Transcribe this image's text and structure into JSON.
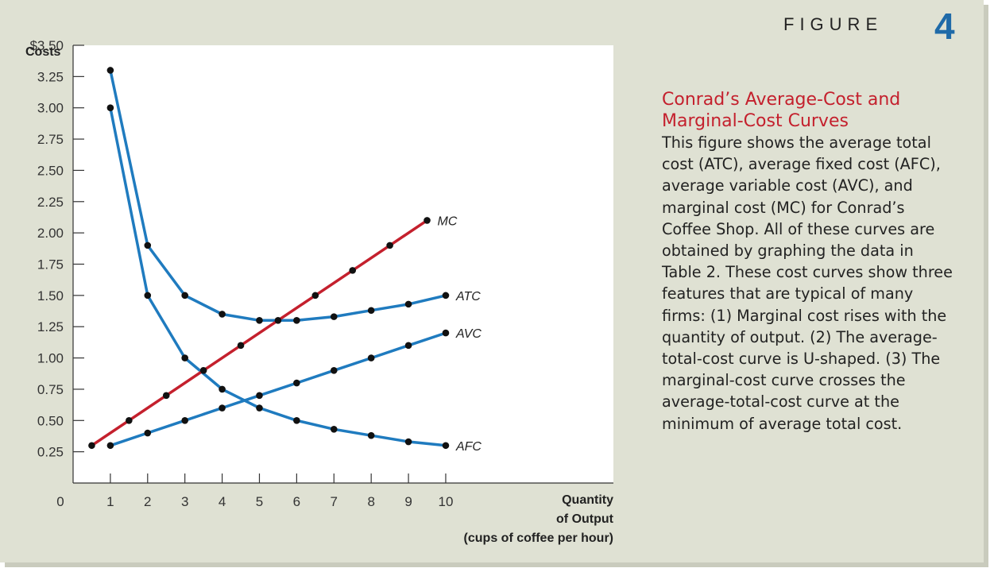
{
  "figure": {
    "label": "FIGURE",
    "number": "4"
  },
  "caption": {
    "title": "Conrad’s Average-Cost and Marginal-Cost Curves",
    "body": "This figure shows the average total cost (ATC), average fixed cost (AFC), average variable cost (AVC), and marginal cost (MC) for Conrad’s Coffee Shop. All of these curves are obtained by graphing the data in Table 2. These cost curves show three features that are typical of many firms: (1) Marginal cost rises with the quantity of output. (2) The average-total-cost curve is U-shaped. (3) The marginal-cost curve crosses the average-total-cost curve at the minimum of average total cost."
  },
  "colors": {
    "line": "#1f7bbf",
    "mc_line": "#c4202d",
    "point": "#111111",
    "accent": "#1f6aa8"
  },
  "chart_data": {
    "type": "line",
    "ylabel": "Costs",
    "xlabel_lines": [
      "Quantity",
      "of Output",
      "(cups of coffee per hour)"
    ],
    "xlim": [
      0,
      14.5
    ],
    "ylim": [
      0,
      3.5
    ],
    "x_ticks": [
      1,
      2,
      3,
      4,
      5,
      6,
      7,
      8,
      9,
      10
    ],
    "x_tick_labels": [
      "1",
      "2",
      "3",
      "4",
      "5",
      "6",
      "7",
      "8",
      "9",
      "10"
    ],
    "origin_label": "0",
    "y_ticks": [
      0.25,
      0.5,
      0.75,
      1.0,
      1.25,
      1.5,
      1.75,
      2.0,
      2.25,
      2.5,
      2.75,
      3.0,
      3.25,
      3.5
    ],
    "y_tick_labels": [
      "0.25",
      "0.50",
      "0.75",
      "1.00",
      "1.25",
      "1.50",
      "1.75",
      "2.00",
      "2.25",
      "2.50",
      "2.75",
      "3.00",
      "3.25",
      "$3.50"
    ],
    "grid": false,
    "series": [
      {
        "name": "ATC",
        "color": "#1f7bbf",
        "x": [
          1,
          2,
          3,
          4,
          5,
          6,
          7,
          8,
          9,
          10
        ],
        "y": [
          3.3,
          1.9,
          1.5,
          1.35,
          1.3,
          1.3,
          1.33,
          1.38,
          1.43,
          1.5
        ]
      },
      {
        "name": "AVC",
        "color": "#1f7bbf",
        "x": [
          1,
          2,
          3,
          4,
          5,
          6,
          7,
          8,
          9,
          10
        ],
        "y": [
          0.3,
          0.4,
          0.5,
          0.6,
          0.7,
          0.8,
          0.9,
          1.0,
          1.1,
          1.2
        ]
      },
      {
        "name": "AFC",
        "color": "#1f7bbf",
        "x": [
          1,
          2,
          3,
          4,
          5,
          6,
          7,
          8,
          9,
          10
        ],
        "y": [
          3.0,
          1.5,
          1.0,
          0.75,
          0.6,
          0.5,
          0.43,
          0.38,
          0.33,
          0.3
        ]
      },
      {
        "name": "MC",
        "color": "#c4202d",
        "x": [
          0.5,
          1.5,
          2.5,
          3.5,
          4.5,
          5.5,
          6.5,
          7.5,
          8.5,
          9.5
        ],
        "y": [
          0.3,
          0.5,
          0.7,
          0.9,
          1.1,
          1.3,
          1.5,
          1.7,
          1.9,
          2.1
        ]
      }
    ]
  }
}
